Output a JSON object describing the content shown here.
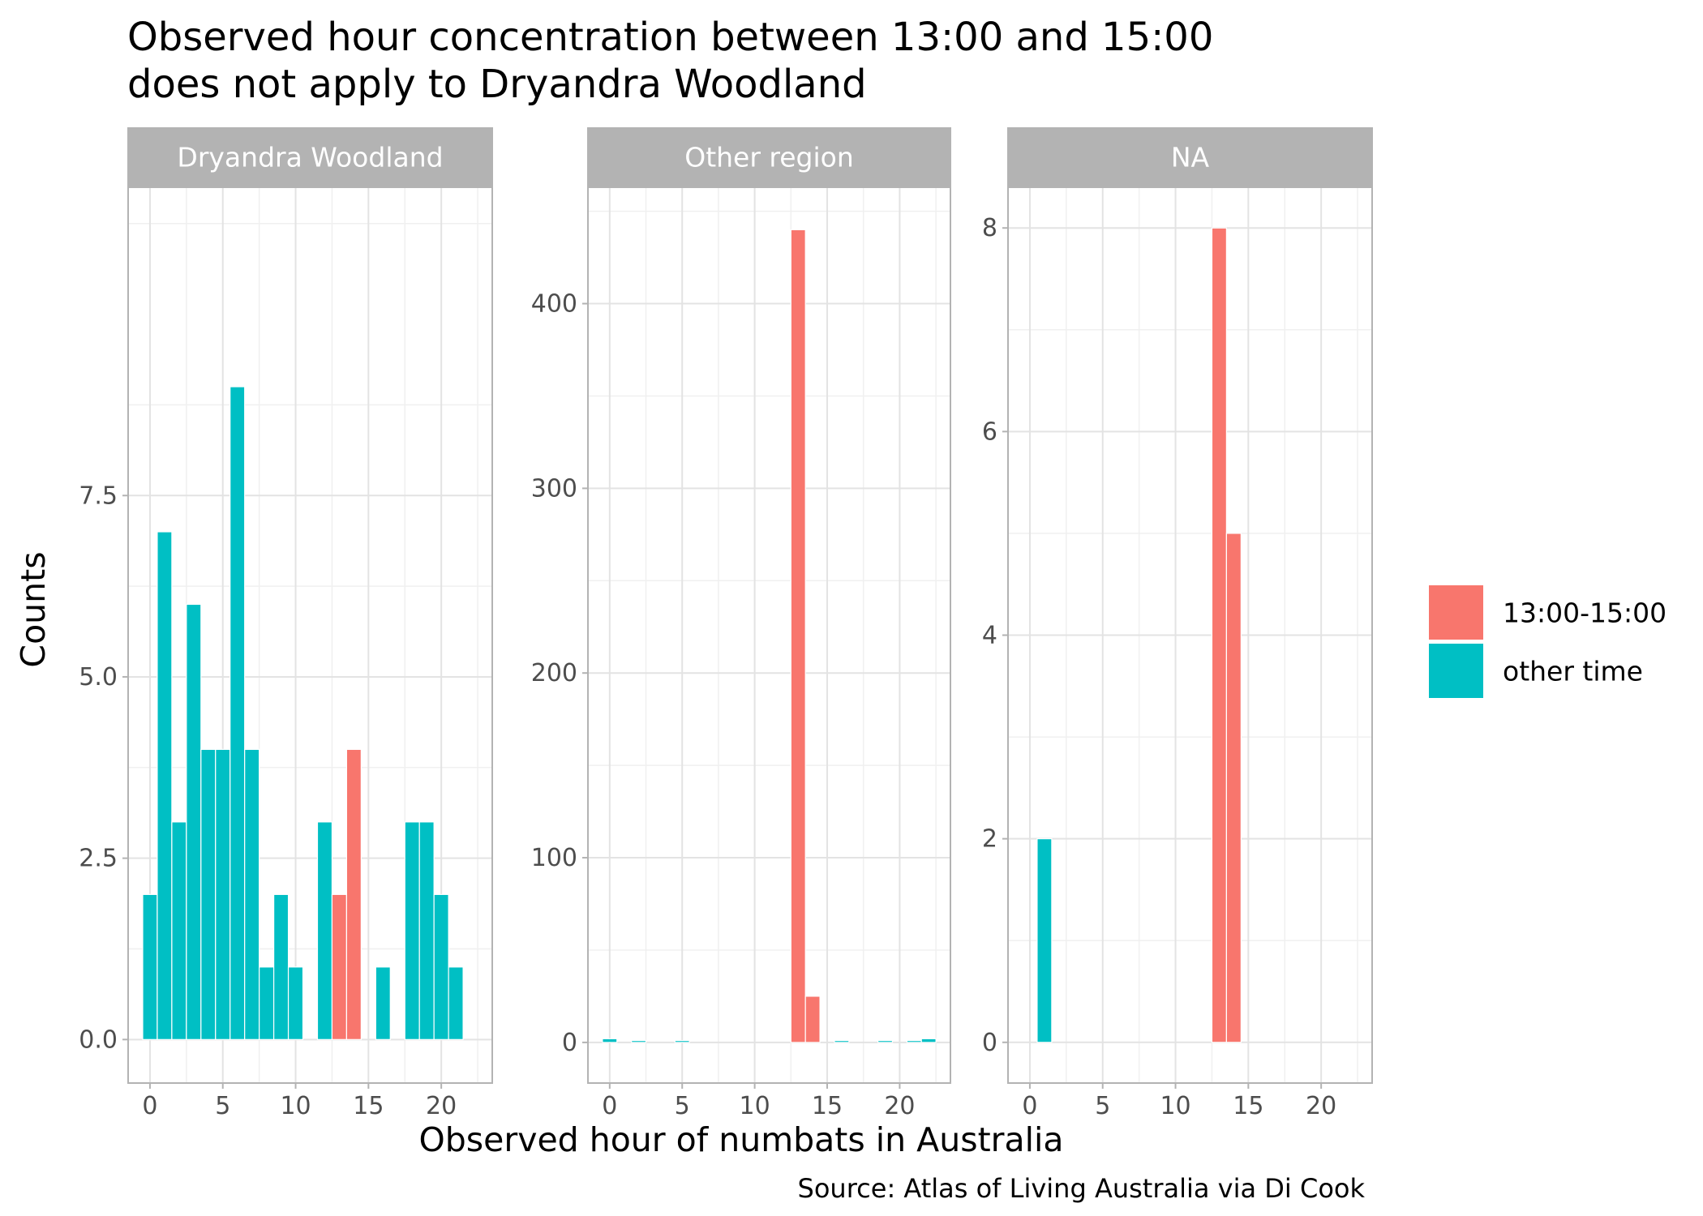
{
  "chart_data": {
    "type": "bar",
    "title": "Observed hour concentration between 13:00 and 15:00",
    "title_line2": "does not apply to Dryandra Woodland",
    "xlabel": "Observed hour of numbats in Australia",
    "ylabel": "Counts",
    "caption": "Source: Atlas of Living Australia via Di Cook",
    "xlim": [
      -1.5,
      23.5
    ],
    "x_ticks": [
      0,
      5,
      10,
      15,
      20
    ],
    "legend": {
      "placement": "right",
      "entries": [
        {
          "key": "peak",
          "label": "13:00-15:00",
          "color": "#F8766D"
        },
        {
          "key": "other",
          "label": "other time",
          "color": "#00BFC4"
        }
      ]
    },
    "panels": [
      {
        "strip": "Dryandra Woodland",
        "ylim": [
          -0.6,
          11.75
        ],
        "y_ticks": [
          0,
          2.5,
          5,
          7.5
        ],
        "y_tick_labels": [
          "0.0",
          "2.5",
          "5.0",
          "7.5"
        ],
        "bars": [
          {
            "hour": 0,
            "count": 2,
            "group": "other"
          },
          {
            "hour": 1,
            "count": 7,
            "group": "other"
          },
          {
            "hour": 2,
            "count": 3,
            "group": "other"
          },
          {
            "hour": 3,
            "count": 6,
            "group": "other"
          },
          {
            "hour": 4,
            "count": 4,
            "group": "other"
          },
          {
            "hour": 5,
            "count": 4,
            "group": "other"
          },
          {
            "hour": 6,
            "count": 9,
            "group": "other"
          },
          {
            "hour": 7,
            "count": 4,
            "group": "other"
          },
          {
            "hour": 8,
            "count": 1,
            "group": "other"
          },
          {
            "hour": 9,
            "count": 2,
            "group": "other"
          },
          {
            "hour": 10,
            "count": 1,
            "group": "other"
          },
          {
            "hour": 12,
            "count": 3,
            "group": "other"
          },
          {
            "hour": 13,
            "count": 2,
            "group": "peak"
          },
          {
            "hour": 14,
            "count": 4,
            "group": "peak"
          },
          {
            "hour": 16,
            "count": 1,
            "group": "other"
          },
          {
            "hour": 18,
            "count": 3,
            "group": "other"
          },
          {
            "hour": 19,
            "count": 3,
            "group": "other"
          },
          {
            "hour": 20,
            "count": 2,
            "group": "other"
          },
          {
            "hour": 21,
            "count": 1,
            "group": "other"
          }
        ]
      },
      {
        "strip": "Other region",
        "ylim": [
          -22,
          463
        ],
        "y_ticks": [
          0,
          100,
          200,
          300,
          400
        ],
        "y_tick_labels": [
          "0",
          "100",
          "200",
          "300",
          "400"
        ],
        "bars": [
          {
            "hour": 0,
            "count": 2,
            "group": "other"
          },
          {
            "hour": 2,
            "count": 1,
            "group": "other"
          },
          {
            "hour": 5,
            "count": 1,
            "group": "other"
          },
          {
            "hour": 13,
            "count": 440,
            "group": "peak"
          },
          {
            "hour": 14,
            "count": 25,
            "group": "peak"
          },
          {
            "hour": 16,
            "count": 1,
            "group": "other"
          },
          {
            "hour": 19,
            "count": 1,
            "group": "other"
          },
          {
            "hour": 21,
            "count": 1,
            "group": "other"
          },
          {
            "hour": 22,
            "count": 2,
            "group": "other"
          }
        ]
      },
      {
        "strip": "NA",
        "ylim": [
          -0.4,
          8.4
        ],
        "y_ticks": [
          0,
          2,
          4,
          6,
          8
        ],
        "y_tick_labels": [
          "0",
          "2",
          "4",
          "6",
          "8"
        ],
        "bars": [
          {
            "hour": 1,
            "count": 2,
            "group": "other"
          },
          {
            "hour": 13,
            "count": 8,
            "group": "peak"
          },
          {
            "hour": 14,
            "count": 5,
            "group": "peak"
          }
        ]
      }
    ]
  }
}
